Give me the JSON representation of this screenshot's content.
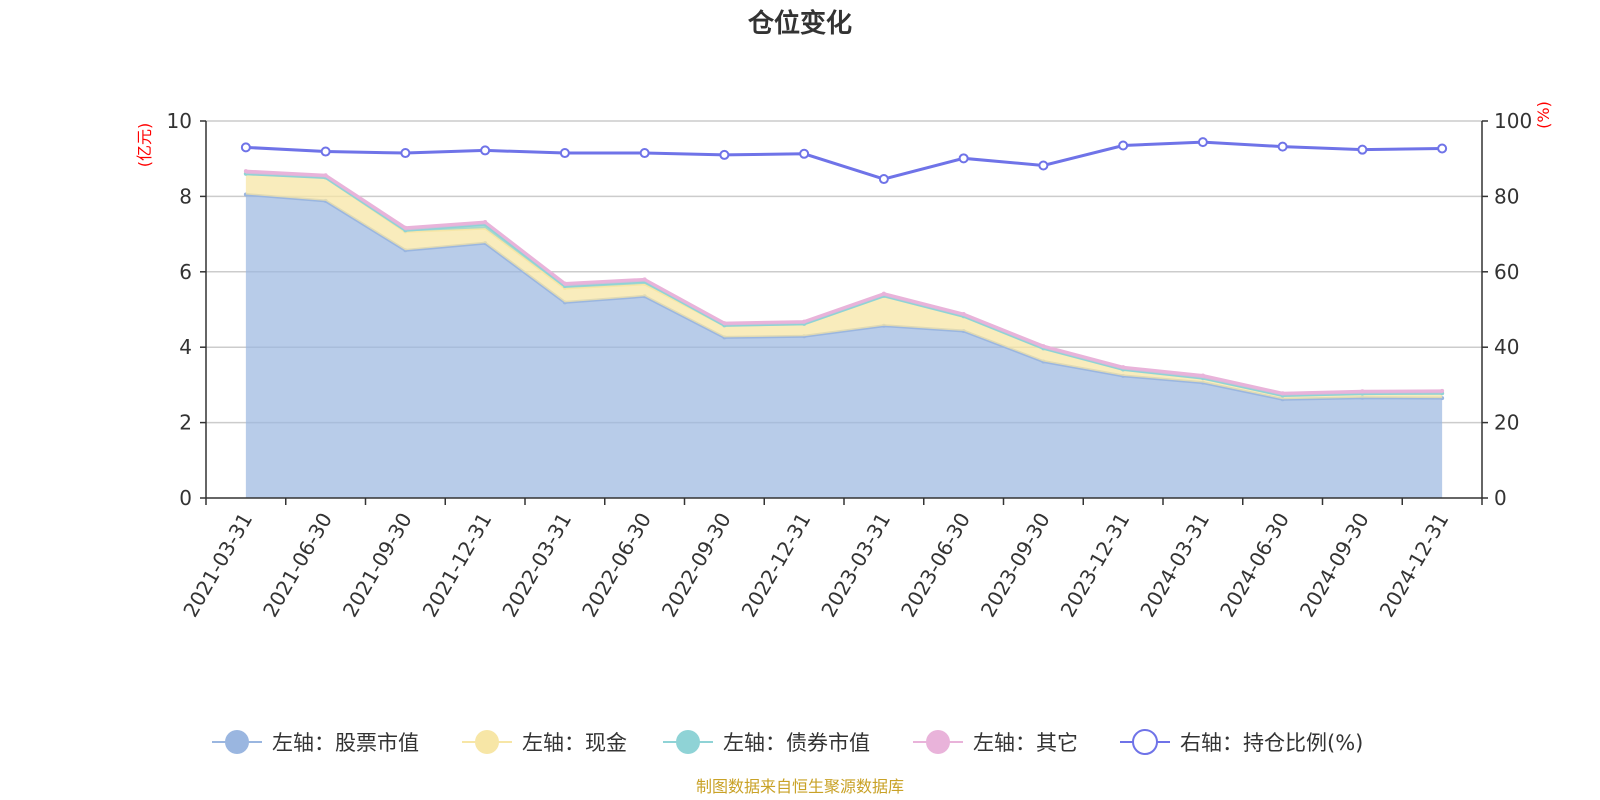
{
  "chart_data": {
    "type": "area",
    "title": "仓位变化",
    "categories": [
      "2021-03-31",
      "2021-06-30",
      "2021-09-30",
      "2021-12-31",
      "2022-03-31",
      "2022-06-30",
      "2022-09-30",
      "2022-12-31",
      "2023-03-31",
      "2023-06-30",
      "2023-09-30",
      "2023-12-31",
      "2024-03-31",
      "2024-06-30",
      "2024-09-30",
      "2024-12-31"
    ],
    "y_left": {
      "unit": "(亿元)",
      "ylim": [
        0,
        10
      ],
      "ticks": [
        "0",
        "2",
        "4",
        "6",
        "8",
        "10"
      ]
    },
    "y_right": {
      "unit": "(%)",
      "ylim": [
        0,
        100
      ],
      "ticks": [
        "0",
        "20",
        "40",
        "60",
        "80",
        "100"
      ]
    },
    "grid": true,
    "legend_position": "bottom",
    "stacked": true,
    "series": [
      {
        "name": "左轴：股票市值",
        "axis": "left",
        "type": "area",
        "color": "#9ab6e0",
        "values": [
          8.05,
          7.88,
          6.57,
          6.76,
          5.19,
          5.35,
          4.26,
          4.29,
          4.57,
          4.43,
          3.62,
          3.24,
          3.06,
          2.62,
          2.66,
          2.65
        ]
      },
      {
        "name": "左轴：现金",
        "axis": "left",
        "type": "area",
        "color": "#f7e6a6",
        "values": [
          0.55,
          0.62,
          0.5,
          0.4,
          0.38,
          0.33,
          0.32,
          0.33,
          0.79,
          0.39,
          0.35,
          0.17,
          0.12,
          0.1,
          0.11,
          0.13
        ]
      },
      {
        "name": "左轴：债券市值",
        "axis": "left",
        "type": "area",
        "color": "#8fd3d6",
        "values": [
          0.0,
          0.0,
          0.03,
          0.1,
          0.05,
          0.06,
          0.0,
          0.0,
          0.0,
          0.0,
          0.0,
          0.0,
          0.0,
          0.0,
          0.0,
          0.0
        ]
      },
      {
        "name": "左轴：其它",
        "axis": "left",
        "type": "area",
        "color": "#e9b3da",
        "values": [
          0.07,
          0.06,
          0.07,
          0.06,
          0.07,
          0.06,
          0.06,
          0.06,
          0.06,
          0.06,
          0.06,
          0.06,
          0.07,
          0.06,
          0.06,
          0.06
        ]
      },
      {
        "name": "右轴：持仓比例(%)",
        "axis": "right",
        "type": "line",
        "color": "#6f73e8",
        "values": [
          93.0,
          91.9,
          91.5,
          92.2,
          91.5,
          91.5,
          91.0,
          91.3,
          84.6,
          90.1,
          88.2,
          93.5,
          94.4,
          93.2,
          92.4,
          92.7
        ]
      }
    ]
  },
  "source_text": "制图数据来自恒生聚源数据库"
}
